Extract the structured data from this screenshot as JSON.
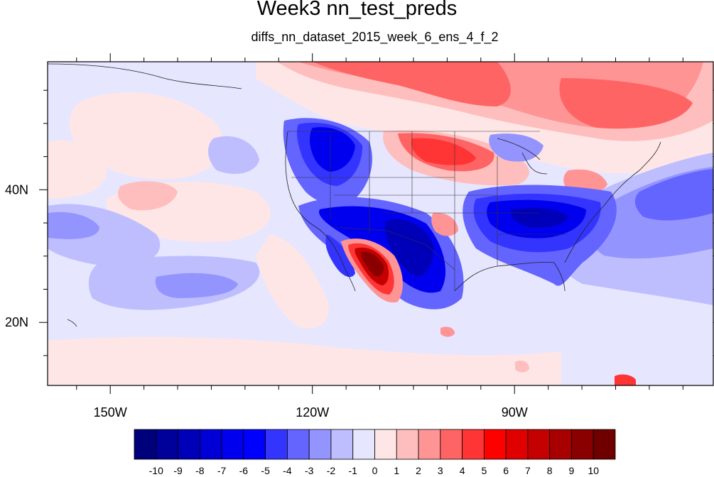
{
  "title": "Week3 nn_test_preds",
  "subtitle": "diffs_nn_dataset_2015_week_6_ens_4_f_2",
  "x_ticks": [
    {
      "label": "150W",
      "lon": -150
    },
    {
      "label": "120W",
      "lon": -120
    },
    {
      "label": "90W",
      "lon": -90
    }
  ],
  "y_ticks": [
    {
      "label": "40N",
      "lat": 40
    },
    {
      "label": "20N",
      "lat": 20
    }
  ],
  "map_extent": {
    "lon_min": -159.3,
    "lon_max": -60.5,
    "lat_min": 10.5,
    "lat_max": 59.3
  },
  "colorbar": {
    "labels": [
      "-10",
      "-9",
      "-8",
      "-7",
      "-6",
      "-5",
      "-4",
      "-3",
      "-2",
      "-1",
      "0",
      "1",
      "2",
      "3",
      "4",
      "5",
      "6",
      "7",
      "8",
      "9",
      "10"
    ],
    "colors": [
      "#00007a",
      "#00009a",
      "#0000b8",
      "#0000d6",
      "#0000ee",
      "#0000ff",
      "#3434ff",
      "#6464ff",
      "#9494ff",
      "#bebeff",
      "#e6e6ff",
      "#ffe6e6",
      "#ffbebe",
      "#ff9494",
      "#ff6464",
      "#ff3434",
      "#ff0000",
      "#e00000",
      "#c40000",
      "#a80000",
      "#8a0000",
      "#6e0000"
    ]
  },
  "field_regions": [
    {
      "name": "sw-positive-anomaly",
      "level": 9
    },
    {
      "name": "southwest-negative",
      "level": -7
    },
    {
      "name": "southeast-negative",
      "level": -7
    },
    {
      "name": "northwest-negative",
      "level": -6
    },
    {
      "name": "canada-positive",
      "level": 4
    },
    {
      "name": "north-plains-positive",
      "level": 6
    },
    {
      "name": "atlantic-negative",
      "level": -3
    },
    {
      "name": "pacific-negative-band",
      "level": -2
    },
    {
      "name": "pacific-positive",
      "level": 2
    }
  ]
}
